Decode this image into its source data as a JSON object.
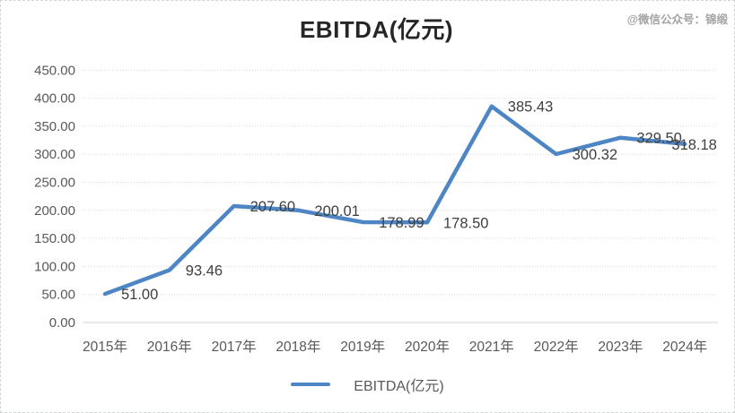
{
  "title": "EBITDA(亿元)",
  "watermark": "@微信公众号：锦缎",
  "legend": {
    "label": "EBITDA(亿元)"
  },
  "colors": {
    "line": "#4e86c5",
    "data_label": "#404040",
    "axis_text": "#595959",
    "gridline": "#d9d9d9",
    "axis_line": "#d4d4d4",
    "title_text": "#262626"
  },
  "chart_data": {
    "type": "line",
    "title": "EBITDA(亿元)",
    "categories": [
      "2015年",
      "2016年",
      "2017年",
      "2018年",
      "2019年",
      "2020年",
      "2021年",
      "2022年",
      "2023年",
      "2024年"
    ],
    "series": [
      {
        "name": "EBITDA(亿元)",
        "values": [
          51.0,
          93.46,
          207.6,
          200.01,
          178.99,
          178.5,
          385.43,
          300.32,
          329.5,
          318.18
        ]
      }
    ],
    "point_labels": [
      "51.00",
      "93.46",
      "207.60",
      "200.01",
      "178.99",
      "178.50",
      "385.43",
      "300.32",
      "329.50",
      "318.18"
    ],
    "xlabel": "",
    "ylabel": "",
    "ylim": [
      0,
      450
    ],
    "ytick_values": [
      0,
      50,
      100,
      150,
      200,
      250,
      300,
      350,
      400,
      450
    ],
    "ytick_labels": [
      "0.00",
      "50.00",
      "100.00",
      "150.00",
      "200.00",
      "250.00",
      "300.00",
      "350.00",
      "400.00",
      "450.00"
    ],
    "grid": true,
    "grid_style": "dotted-horizontal",
    "legend_position": "bottom"
  }
}
